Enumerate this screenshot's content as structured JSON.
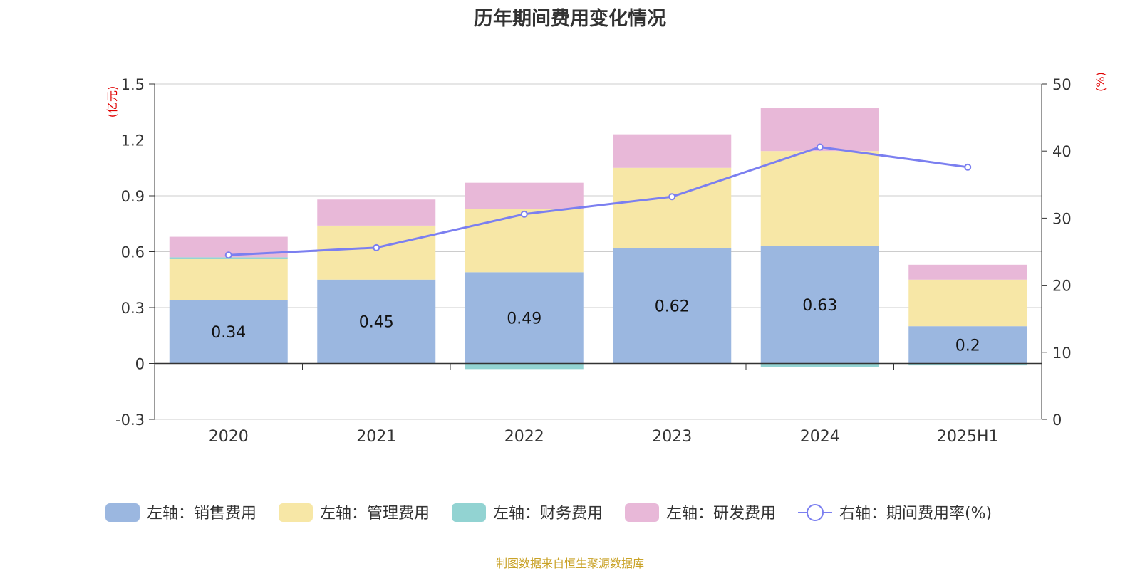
{
  "title": "历年期间费用变化情况",
  "source_note": "制图数据来自恒生聚源数据库",
  "chart_data": {
    "type": "bar",
    "stacked": true,
    "title": "历年期间费用变化情况",
    "categories": [
      "2020",
      "2021",
      "2022",
      "2023",
      "2024",
      "2025H1"
    ],
    "y_left": {
      "unit_label": "(亿元)",
      "ylim": [
        -0.3,
        1.5
      ],
      "ticks": [
        -0.3,
        0,
        0.3,
        0.6,
        0.9,
        1.2,
        1.5
      ],
      "tick_labels": [
        "-0.3",
        "0",
        "0.3",
        "0.6",
        "0.9",
        "1.2",
        "1.5"
      ]
    },
    "y_right": {
      "unit_label": "(%)",
      "ylim": [
        0,
        50
      ],
      "ticks": [
        0,
        10,
        20,
        30,
        40,
        50
      ],
      "tick_labels": [
        "0",
        "10",
        "20",
        "30",
        "40",
        "50"
      ]
    },
    "grid": true,
    "legend_position": "bottom",
    "series": [
      {
        "name": "左轴：销售费用",
        "type": "bar",
        "axis": "left",
        "color": "#9bb7e0",
        "values": [
          0.34,
          0.45,
          0.49,
          0.62,
          0.63,
          0.2
        ],
        "labels": [
          "0.34",
          "0.45",
          "0.49",
          "0.62",
          "0.63",
          "0.2"
        ]
      },
      {
        "name": "左轴：管理费用",
        "type": "bar",
        "axis": "left",
        "color": "#f7e7a6",
        "values": [
          0.22,
          0.29,
          0.34,
          0.43,
          0.51,
          0.25
        ]
      },
      {
        "name": "左轴：财务费用",
        "type": "bar",
        "axis": "left",
        "color": "#92d3d2",
        "values": [
          0.01,
          0.0,
          -0.03,
          0.0,
          -0.02,
          -0.01
        ]
      },
      {
        "name": "左轴：研发费用",
        "type": "bar",
        "axis": "left",
        "color": "#e8b8d8",
        "values": [
          0.11,
          0.14,
          0.14,
          0.18,
          0.23,
          0.08
        ]
      },
      {
        "name": "右轴：期间费用率(%)",
        "type": "line",
        "axis": "right",
        "color": "#7b7ff0",
        "values": [
          24.5,
          25.6,
          30.6,
          33.2,
          40.6,
          37.6
        ]
      }
    ]
  }
}
